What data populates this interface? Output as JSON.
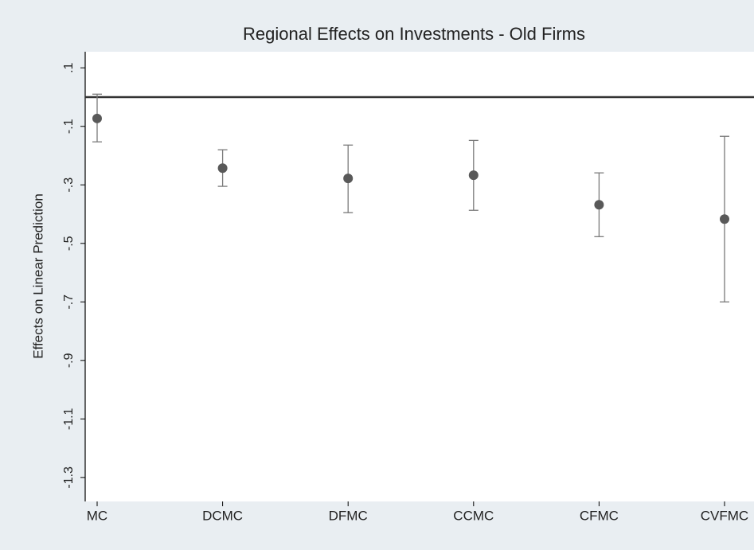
{
  "chart_data": {
    "type": "errorbar",
    "title": "Regional Effects on Investments - Old Firms",
    "y_label": "Effects on Linear Prediction",
    "categories": [
      "MC",
      "DCMC",
      "DFMC",
      "CCMC",
      "CFMC",
      "CVFMC"
    ],
    "values": [
      -0.073,
      -0.243,
      -0.278,
      -0.267,
      -0.368,
      -0.417
    ],
    "lower": [
      -0.153,
      -0.305,
      -0.395,
      -0.387,
      -0.477,
      -0.7
    ],
    "upper": [
      0.01,
      -0.18,
      -0.164,
      -0.148,
      -0.259,
      -0.134
    ],
    "color": "#595959",
    "bar_color": "#7a7a7a",
    "refline": 0,
    "ylim": [
      -1.382,
      0.155
    ],
    "yticks": [
      {
        "value": 0.1,
        "label": ".1"
      },
      {
        "value": -0.1,
        "label": "-.1"
      },
      {
        "value": -0.3,
        "label": "-.3"
      },
      {
        "value": -0.5,
        "label": "-.5"
      },
      {
        "value": -0.7,
        "label": "-.7"
      },
      {
        "value": -0.9,
        "label": "-.9"
      },
      -1.1,
      -1.3
    ]
  }
}
